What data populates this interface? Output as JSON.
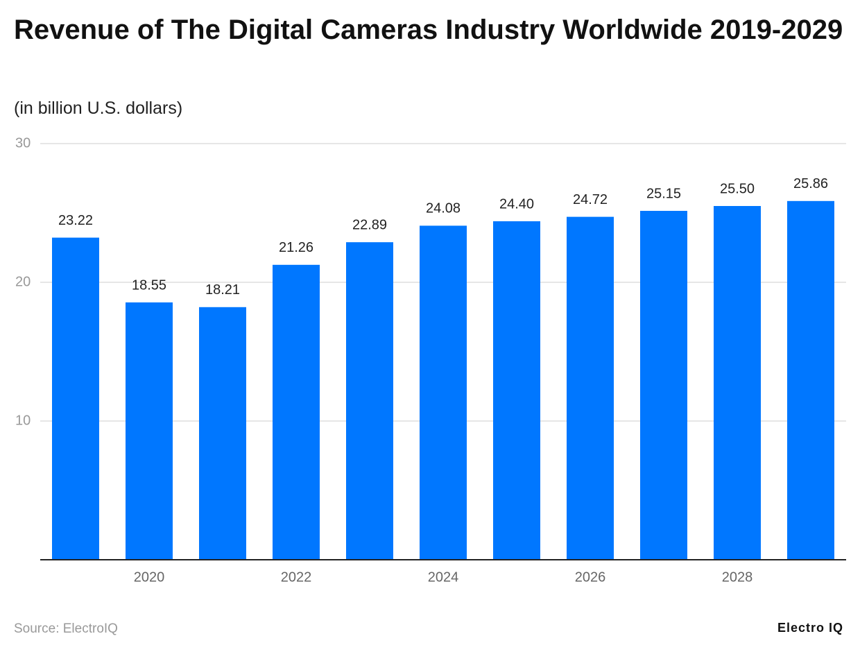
{
  "chart_data": {
    "type": "bar",
    "title": "Revenue of The Digital Cameras Industry Worldwide 2019-2029",
    "subtitle": "(in billion U.S. dollars)",
    "categories": [
      null,
      "2020",
      null,
      "2022",
      null,
      "2024",
      null,
      "2026",
      null,
      "2028",
      null
    ],
    "values": [
      23.22,
      18.55,
      18.21,
      21.26,
      22.89,
      24.08,
      24.4,
      24.72,
      25.15,
      25.5,
      25.86
    ],
    "value_labels": [
      "23.22",
      "18.55",
      "18.21",
      "21.26",
      "22.89",
      "24.08",
      "24.40",
      "24.72",
      "25.15",
      "25.50",
      "25.86"
    ],
    "color": "#0077ff",
    "ylim": [
      0,
      30
    ],
    "yticks": [
      10,
      20,
      30
    ],
    "grid": true,
    "source": "Source: ElectroIQ",
    "brand": "Electro IQ"
  }
}
